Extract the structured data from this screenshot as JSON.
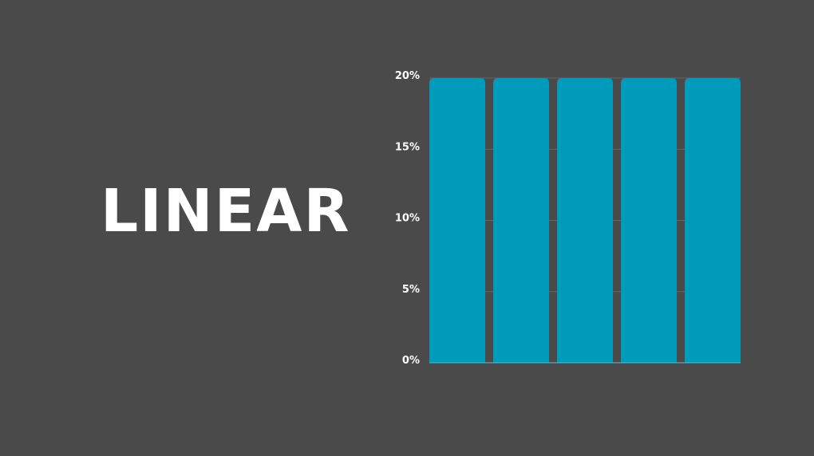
{
  "chart_data": {
    "type": "bar",
    "title": "LINEAR",
    "categories": [
      "",
      "",
      "",
      "",
      ""
    ],
    "values": [
      20,
      20,
      20,
      20,
      20
    ],
    "ylim": [
      0,
      20
    ],
    "yticks": [
      0,
      5,
      10,
      15,
      20
    ],
    "ytick_labels": [
      "0%",
      "5%",
      "10%",
      "15%",
      "20%"
    ],
    "grid": true,
    "xlabel": "",
    "ylabel": "",
    "colors": {
      "bar": "#009aba",
      "background": "#4a4a4a",
      "grid": "#666666",
      "text": "#ffffff"
    }
  }
}
